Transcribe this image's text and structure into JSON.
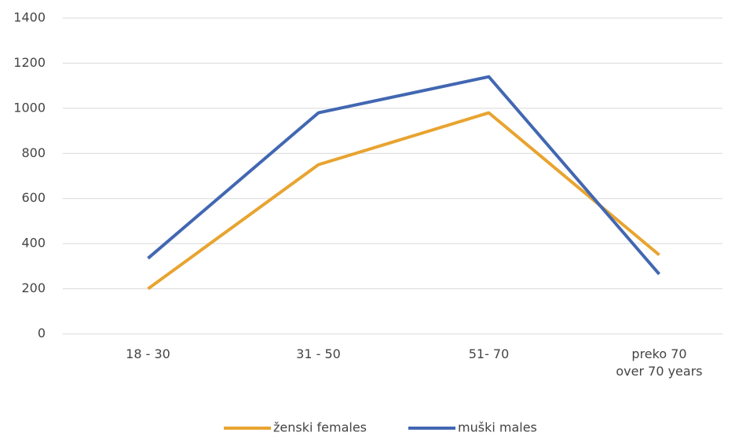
{
  "chart_data": {
    "type": "line",
    "categories": [
      "18 - 30",
      "31 - 50",
      "51- 70",
      "preko 70\nover 70 years"
    ],
    "series": [
      {
        "name": "ženski females",
        "color": "#e8a430",
        "values": [
          200,
          750,
          980,
          350
        ]
      },
      {
        "name": "muški males",
        "color": "#4267b2",
        "values": [
          335,
          980,
          1140,
          265
        ]
      }
    ],
    "ylim": [
      0,
      1400
    ],
    "yticks": [
      0,
      200,
      400,
      600,
      800,
      1000,
      1200,
      1400
    ],
    "grid": true
  }
}
